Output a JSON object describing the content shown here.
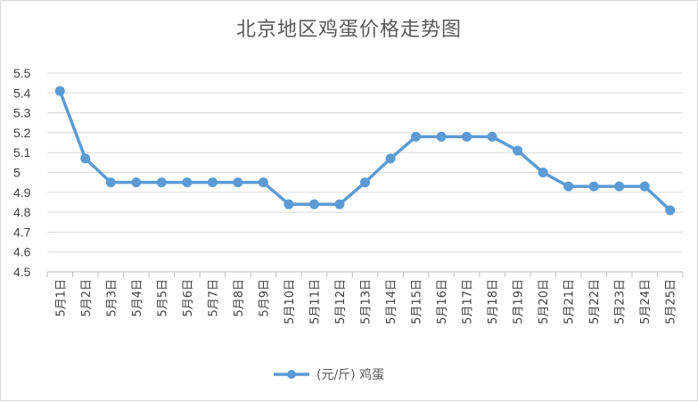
{
  "chart_data": {
    "type": "line",
    "title": "北京地区鸡蛋价格走势图",
    "xlabel": "",
    "ylabel": "",
    "categories": [
      "5月1日",
      "5月2日",
      "5月3日",
      "5月4日",
      "5月5日",
      "5月6日",
      "5月7日",
      "5月8日",
      "5月9日",
      "5月10日",
      "5月11日",
      "5月12日",
      "5月13日",
      "5月14日",
      "5月15日",
      "5月16日",
      "5月17日",
      "5月18日",
      "5月19日",
      "5月20日",
      "5月21日",
      "5月22日",
      "5月23日",
      "5月24日",
      "5月25日"
    ],
    "series": [
      {
        "name": "(元/斤) 鸡蛋",
        "values": [
          5.41,
          5.07,
          4.95,
          4.95,
          4.95,
          4.95,
          4.95,
          4.95,
          4.95,
          4.84,
          4.84,
          4.84,
          4.95,
          5.07,
          5.18,
          5.18,
          5.18,
          5.18,
          5.11,
          5.0,
          4.93,
          4.93,
          4.93,
          4.93,
          4.81
        ]
      }
    ],
    "ylim": [
      4.5,
      5.5
    ],
    "yticks": [
      "4.5",
      "4.6",
      "4.7",
      "4.8",
      "4.9",
      "5",
      "5.1",
      "5.2",
      "5.3",
      "5.4",
      "5.5"
    ],
    "grid": true,
    "legend": "bottom",
    "colors": {
      "line": "#5b9bd5",
      "grid": "#d9d9d9",
      "axis": "#bfbfbf",
      "text": "#404040"
    }
  }
}
